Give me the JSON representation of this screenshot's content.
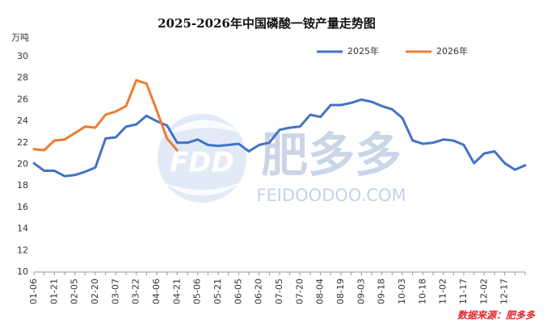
{
  "chart_data": {
    "type": "line",
    "title": "2025-2026年中国磷酸一铵产量走势图",
    "y_unit": "万吨",
    "source": "数据来源：肥多多",
    "watermark": {
      "logo": "FDD",
      "name": "肥多多",
      "url": "FEIDOODOO.COM"
    },
    "categories": [
      "01-06",
      null,
      "01-21",
      null,
      "02-05",
      null,
      "02-20",
      null,
      "03-07",
      null,
      "03-22",
      null,
      "04-06",
      null,
      "04-21",
      null,
      "05-06",
      null,
      "05-21",
      null,
      "06-05",
      null,
      "06-20",
      null,
      "07-05",
      null,
      "07-20",
      null,
      "08-04",
      null,
      "08-19",
      null,
      "09-03",
      null,
      "09-18",
      null,
      "10-03",
      null,
      "10-18",
      null,
      "11-02",
      null,
      "11-17",
      null,
      "12-02",
      null,
      "12-17",
      null,
      null
    ],
    "series": [
      {
        "name": "2025年",
        "color": "#4472c4",
        "values": [
          20.1,
          19.4,
          19.4,
          18.9,
          19.0,
          19.3,
          19.7,
          22.4,
          22.5,
          23.5,
          23.7,
          24.5,
          24.0,
          23.6,
          22.0,
          22.0,
          22.3,
          21.8,
          21.7,
          21.8,
          21.9,
          21.2,
          21.8,
          22.0,
          23.2,
          23.4,
          23.5,
          24.6,
          24.4,
          25.5,
          25.5,
          25.7,
          26.0,
          25.8,
          25.4,
          25.1,
          24.3,
          22.2,
          21.9,
          22.0,
          22.3,
          22.2,
          21.8,
          20.1,
          21.0,
          21.2,
          20.1,
          19.5,
          19.9
        ]
      },
      {
        "name": "2026年",
        "color": "#ed7d31",
        "values": [
          21.4,
          21.3,
          22.2,
          22.3,
          22.9,
          23.5,
          23.4,
          24.6,
          24.9,
          25.4,
          27.8,
          27.5,
          25.0,
          22.4,
          21.3,
          null,
          null,
          null,
          null,
          null,
          null,
          null,
          null,
          null,
          null,
          null,
          null,
          null,
          null,
          null,
          null,
          null,
          null,
          null,
          null,
          null,
          null,
          null,
          null,
          null,
          null,
          null,
          null,
          null,
          null,
          null,
          null,
          null,
          null
        ]
      }
    ],
    "ylim": [
      10,
      30
    ],
    "yticks": [
      10,
      12,
      14,
      16,
      18,
      20,
      22,
      24,
      26,
      28,
      30
    ],
    "grid": false,
    "legend": "top-right"
  }
}
